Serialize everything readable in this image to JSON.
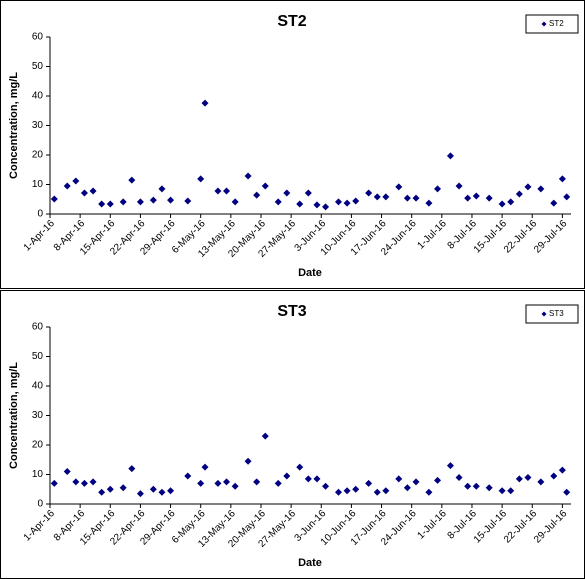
{
  "chart_data": [
    {
      "type": "scatter",
      "title": "ST2",
      "xlabel": "Date",
      "ylabel": "Concentration, mg/L",
      "x": [
        "2016-04-02",
        "2016-04-05",
        "2016-04-07",
        "2016-04-09",
        "2016-04-11",
        "2016-04-13",
        "2016-04-15",
        "2016-04-18",
        "2016-04-20",
        "2016-04-22",
        "2016-04-25",
        "2016-04-27",
        "2016-04-29",
        "2016-05-03",
        "2016-05-06",
        "2016-05-07",
        "2016-05-10",
        "2016-05-12",
        "2016-05-14",
        "2016-05-17",
        "2016-05-19",
        "2016-05-21",
        "2016-05-24",
        "2016-05-26",
        "2016-05-29",
        "2016-05-31",
        "2016-06-02",
        "2016-06-04",
        "2016-06-07",
        "2016-06-09",
        "2016-06-11",
        "2016-06-14",
        "2016-06-16",
        "2016-06-18",
        "2016-06-21",
        "2016-06-23",
        "2016-06-25",
        "2016-06-28",
        "2016-06-30",
        "2016-07-03",
        "2016-07-05",
        "2016-07-07",
        "2016-07-09",
        "2016-07-12",
        "2016-07-15",
        "2016-07-17",
        "2016-07-19",
        "2016-07-21",
        "2016-07-24",
        "2016-07-27",
        "2016-07-29",
        "2016-07-30"
      ],
      "series": [
        {
          "name": "ST2",
          "color": "#000080",
          "values": [
            5.1,
            9.5,
            11.2,
            7.1,
            7.8,
            3.4,
            3.4,
            4.1,
            11.5,
            4.1,
            4.7,
            8.5,
            4.7,
            4.4,
            11.9,
            37.6,
            7.8,
            7.8,
            4.1,
            12.9,
            6.4,
            9.5,
            4.1,
            7.1,
            3.4,
            7.1,
            3.1,
            2.4,
            4.1,
            3.7,
            4.4,
            7.1,
            5.8,
            5.8,
            9.2,
            5.4,
            5.4,
            3.7,
            8.5,
            19.7,
            9.5,
            5.4,
            6.1,
            5.4,
            3.4,
            4.1,
            6.8,
            9.2,
            8.5,
            3.7,
            11.9,
            5.8
          ]
        }
      ],
      "xlim": [
        "2016-04-01",
        "2016-07-31"
      ],
      "ylim": [
        0,
        60
      ],
      "yticks": [
        0,
        10,
        20,
        30,
        40,
        50,
        60
      ],
      "xticks": [
        {
          "value": "2016-04-01",
          "label": "1-Apr-16"
        },
        {
          "value": "2016-04-08",
          "label": "8-Apr-16"
        },
        {
          "value": "2016-04-15",
          "label": "15-Apr-16"
        },
        {
          "value": "2016-04-22",
          "label": "22-Apr-16"
        },
        {
          "value": "2016-04-29",
          "label": "29-Apr-16"
        },
        {
          "value": "2016-05-06",
          "label": "6-May-16"
        },
        {
          "value": "2016-05-13",
          "label": "13-May-16"
        },
        {
          "value": "2016-05-20",
          "label": "20-May-16"
        },
        {
          "value": "2016-05-27",
          "label": "27-May-16"
        },
        {
          "value": "2016-06-03",
          "label": "3-Jun-16"
        },
        {
          "value": "2016-06-10",
          "label": "10-Jun-16"
        },
        {
          "value": "2016-06-17",
          "label": "17-Jun-16"
        },
        {
          "value": "2016-06-24",
          "label": "24-Jun-16"
        },
        {
          "value": "2016-07-01",
          "label": "1-Jul-16"
        },
        {
          "value": "2016-07-08",
          "label": "8-Jul-16"
        },
        {
          "value": "2016-07-15",
          "label": "15-Jul-16"
        },
        {
          "value": "2016-07-22",
          "label": "22-Jul-16"
        },
        {
          "value": "2016-07-29",
          "label": "29-Jul-16"
        }
      ]
    },
    {
      "type": "scatter",
      "title": "ST3",
      "xlabel": "Date",
      "ylabel": "Concentration, mg/L",
      "x": [
        "2016-04-02",
        "2016-04-05",
        "2016-04-07",
        "2016-04-09",
        "2016-04-11",
        "2016-04-13",
        "2016-04-15",
        "2016-04-18",
        "2016-04-20",
        "2016-04-22",
        "2016-04-25",
        "2016-04-27",
        "2016-04-29",
        "2016-05-03",
        "2016-05-06",
        "2016-05-07",
        "2016-05-10",
        "2016-05-12",
        "2016-05-14",
        "2016-05-17",
        "2016-05-19",
        "2016-05-21",
        "2016-05-24",
        "2016-05-26",
        "2016-05-29",
        "2016-05-31",
        "2016-06-02",
        "2016-06-04",
        "2016-06-07",
        "2016-06-09",
        "2016-06-11",
        "2016-06-14",
        "2016-06-16",
        "2016-06-18",
        "2016-06-21",
        "2016-06-23",
        "2016-06-25",
        "2016-06-28",
        "2016-06-30",
        "2016-07-03",
        "2016-07-05",
        "2016-07-07",
        "2016-07-09",
        "2016-07-12",
        "2016-07-15",
        "2016-07-17",
        "2016-07-19",
        "2016-07-21",
        "2016-07-24",
        "2016-07-27",
        "2016-07-29",
        "2016-07-30"
      ],
      "series": [
        {
          "name": "ST3",
          "color": "#000080",
          "values": [
            7,
            11,
            7.5,
            7,
            7.5,
            4,
            5,
            5.5,
            12,
            3.5,
            5,
            4,
            4.5,
            9.5,
            7,
            12.5,
            7,
            7.5,
            6,
            14.5,
            7.5,
            23,
            7,
            9.5,
            12.5,
            8.5,
            8.5,
            6,
            4,
            4.5,
            5,
            7,
            4,
            4.5,
            8.5,
            5.5,
            7.5,
            4,
            8,
            13,
            9,
            6,
            6,
            5.5,
            4.5,
            4.5,
            8.5,
            9,
            7.5,
            9.5,
            11.5,
            4
          ]
        }
      ],
      "xlim": [
        "2016-04-01",
        "2016-07-31"
      ],
      "ylim": [
        0,
        60
      ],
      "yticks": [
        0,
        10,
        20,
        30,
        40,
        50,
        60
      ],
      "xticks": [
        {
          "value": "2016-04-01",
          "label": "1-Apr-16"
        },
        {
          "value": "2016-04-08",
          "label": "8-Apr-16"
        },
        {
          "value": "2016-04-15",
          "label": "15-Apr-16"
        },
        {
          "value": "2016-04-22",
          "label": "22-Apr-16"
        },
        {
          "value": "2016-04-29",
          "label": "29-Apr-16"
        },
        {
          "value": "2016-05-06",
          "label": "6-May-16"
        },
        {
          "value": "2016-05-13",
          "label": "13-May-16"
        },
        {
          "value": "2016-05-20",
          "label": "20-May-16"
        },
        {
          "value": "2016-05-27",
          "label": "27-May-16"
        },
        {
          "value": "2016-06-03",
          "label": "3-Jun-16"
        },
        {
          "value": "2016-06-10",
          "label": "10-Jun-16"
        },
        {
          "value": "2016-06-17",
          "label": "17-Jun-16"
        },
        {
          "value": "2016-06-24",
          "label": "24-Jun-16"
        },
        {
          "value": "2016-07-01",
          "label": "1-Jul-16"
        },
        {
          "value": "2016-07-08",
          "label": "8-Jul-16"
        },
        {
          "value": "2016-07-15",
          "label": "15-Jul-16"
        },
        {
          "value": "2016-07-22",
          "label": "22-Jul-16"
        },
        {
          "value": "2016-07-29",
          "label": "29-Jul-16"
        }
      ]
    }
  ]
}
